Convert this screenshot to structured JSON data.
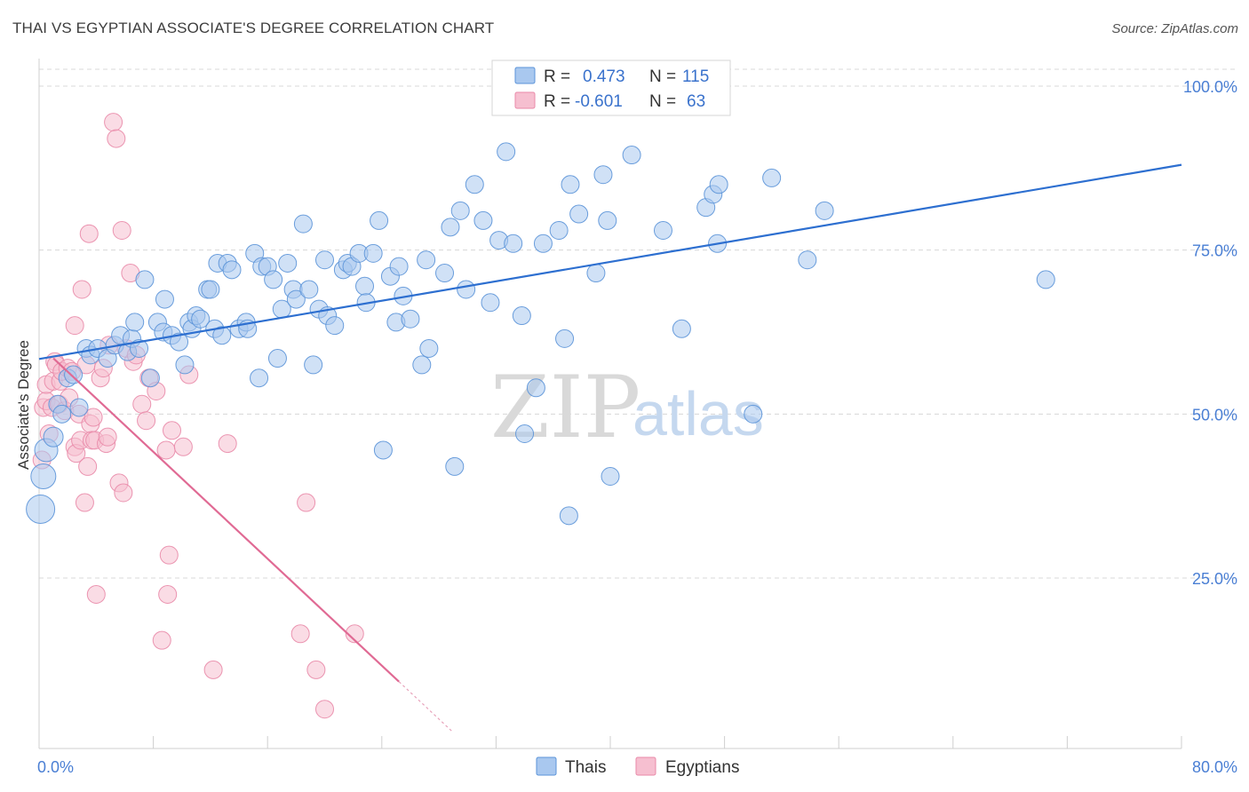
{
  "header": {
    "title": "THAI VS EGYPTIAN ASSOCIATE'S DEGREE CORRELATION CHART",
    "source": "Source: ZipAtlas.com"
  },
  "watermark": {
    "zip": "ZIP",
    "atlas": "atlas"
  },
  "colors": {
    "thai_fill": "#a9c8ef",
    "thai_stroke": "#5b93d8",
    "thai_line": "#2d6fd0",
    "egypt_fill": "#f6bfd0",
    "egypt_stroke": "#e98aa9",
    "egypt_line": "#e06a94",
    "tick": "#4a7fd4",
    "grid": "#d8d8d8"
  },
  "legend": {
    "rows": [
      {
        "r_label": "R =",
        "r_value": "0.473",
        "n_label": "N =",
        "n_value": "115"
      },
      {
        "r_label": "R =",
        "r_value": "-0.601",
        "n_label": "N =",
        "n_value": "63"
      }
    ],
    "bottom": [
      "Thais",
      "Egyptians"
    ]
  },
  "chart_data": {
    "type": "scatter",
    "title": "THAI VS EGYPTIAN ASSOCIATE'S DEGREE CORRELATION CHART",
    "xlabel": "",
    "ylabel": "Associate's Degree",
    "xlim": [
      0,
      80
    ],
    "ylim": [
      0,
      105
    ],
    "x_tick_labels": [
      "0.0%",
      "80.0%"
    ],
    "y_ticks": [
      25,
      50,
      75,
      100
    ],
    "y_tick_labels": [
      "25.0%",
      "50.0%",
      "75.0%",
      "100.0%"
    ],
    "grid": true,
    "legend_position": "top-center",
    "series": [
      {
        "name": "Thais",
        "r": 0.473,
        "n": 115,
        "trend": {
          "x": [
            0,
            80
          ],
          "y": [
            58.4,
            88.0
          ]
        },
        "points": [
          [
            0.1,
            35.5,
            16
          ],
          [
            0.3,
            40.5,
            14
          ],
          [
            0.5,
            44.5,
            13
          ],
          [
            1.0,
            46.5,
            11
          ],
          [
            1.3,
            51.5,
            10
          ],
          [
            1.6,
            50.0,
            10
          ],
          [
            2.0,
            55.5,
            10
          ],
          [
            2.4,
            56.0,
            10
          ],
          [
            2.8,
            51.0,
            10
          ],
          [
            3.3,
            60.0,
            10
          ],
          [
            3.6,
            59.0,
            10
          ],
          [
            4.1,
            60.0,
            10
          ],
          [
            4.8,
            58.5,
            10
          ],
          [
            5.3,
            60.5,
            10
          ],
          [
            5.7,
            62.0,
            10
          ],
          [
            6.2,
            59.5,
            10
          ],
          [
            6.5,
            61.5,
            10
          ],
          [
            6.7,
            64.0,
            10
          ],
          [
            7.0,
            60.0,
            10
          ],
          [
            7.4,
            70.5,
            10
          ],
          [
            7.8,
            55.5,
            10
          ],
          [
            8.3,
            64.0,
            10
          ],
          [
            8.7,
            62.5,
            10
          ],
          [
            8.8,
            67.5,
            10
          ],
          [
            9.3,
            62.0,
            10
          ],
          [
            9.8,
            61.0,
            10
          ],
          [
            10.2,
            57.5,
            10
          ],
          [
            10.5,
            64.0,
            10
          ],
          [
            10.7,
            63.0,
            10
          ],
          [
            11.0,
            65.0,
            10
          ],
          [
            11.3,
            64.5,
            10
          ],
          [
            11.8,
            69.0,
            10
          ],
          [
            12.0,
            69.0,
            10
          ],
          [
            12.3,
            63.0,
            10
          ],
          [
            12.5,
            73.0,
            10
          ],
          [
            12.8,
            62.0,
            10
          ],
          [
            13.2,
            73.0,
            10
          ],
          [
            13.5,
            72.0,
            10
          ],
          [
            14.0,
            63.0,
            10
          ],
          [
            14.5,
            64.0,
            10
          ],
          [
            14.6,
            63.0,
            10
          ],
          [
            15.1,
            74.5,
            10
          ],
          [
            15.4,
            55.5,
            10
          ],
          [
            15.6,
            72.5,
            10
          ],
          [
            16.0,
            72.5,
            10
          ],
          [
            16.4,
            70.5,
            10
          ],
          [
            16.7,
            58.5,
            10
          ],
          [
            17.0,
            66.0,
            10
          ],
          [
            17.4,
            73.0,
            10
          ],
          [
            17.8,
            69.0,
            10
          ],
          [
            18.0,
            67.5,
            10
          ],
          [
            18.5,
            79.0,
            10
          ],
          [
            18.9,
            69.0,
            10
          ],
          [
            19.2,
            57.5,
            10
          ],
          [
            19.6,
            66.0,
            10
          ],
          [
            20.0,
            73.5,
            10
          ],
          [
            20.2,
            65.0,
            10
          ],
          [
            20.7,
            63.5,
            10
          ],
          [
            21.3,
            72.0,
            10
          ],
          [
            21.6,
            73.0,
            10
          ],
          [
            21.9,
            72.5,
            10
          ],
          [
            22.4,
            74.5,
            10
          ],
          [
            22.8,
            69.5,
            10
          ],
          [
            22.9,
            67.0,
            10
          ],
          [
            23.4,
            74.5,
            10
          ],
          [
            23.8,
            79.5,
            10
          ],
          [
            24.1,
            44.5,
            10
          ],
          [
            24.6,
            71.0,
            10
          ],
          [
            25.0,
            64.0,
            10
          ],
          [
            25.2,
            72.5,
            10
          ],
          [
            25.5,
            68.0,
            10
          ],
          [
            26.0,
            64.5,
            10
          ],
          [
            26.8,
            57.5,
            10
          ],
          [
            27.1,
            73.5,
            10
          ],
          [
            27.3,
            60.0,
            10
          ],
          [
            28.4,
            71.5,
            10
          ],
          [
            28.8,
            78.5,
            10
          ],
          [
            29.1,
            42.0,
            10
          ],
          [
            29.5,
            81.0,
            10
          ],
          [
            29.9,
            69.0,
            10
          ],
          [
            30.5,
            85.0,
            10
          ],
          [
            31.1,
            79.5,
            10
          ],
          [
            31.6,
            67.0,
            10
          ],
          [
            32.2,
            76.5,
            10
          ],
          [
            32.7,
            90.0,
            10
          ],
          [
            33.2,
            76.0,
            10
          ],
          [
            33.8,
            65.0,
            10
          ],
          [
            34.0,
            47.0,
            10
          ],
          [
            34.8,
            54.0,
            10
          ],
          [
            35.3,
            76.0,
            10
          ],
          [
            36.4,
            78.0,
            10
          ],
          [
            36.8,
            61.5,
            10
          ],
          [
            37.1,
            34.5,
            10
          ],
          [
            37.2,
            85.0,
            10
          ],
          [
            37.8,
            80.5,
            10
          ],
          [
            39.0,
            71.5,
            10
          ],
          [
            39.5,
            86.5,
            10
          ],
          [
            39.8,
            79.5,
            10
          ],
          [
            40.0,
            40.5,
            10
          ],
          [
            41.5,
            89.5,
            10
          ],
          [
            43.7,
            78.0,
            10
          ],
          [
            45.0,
            63.0,
            10
          ],
          [
            46.7,
            81.5,
            10
          ],
          [
            47.2,
            83.5,
            10
          ],
          [
            47.5,
            76.0,
            10
          ],
          [
            47.6,
            85.0,
            10
          ],
          [
            50.0,
            50.0,
            10
          ],
          [
            51.3,
            86.0,
            10
          ],
          [
            53.8,
            73.5,
            10
          ],
          [
            55.0,
            81.0,
            10
          ],
          [
            70.5,
            70.5,
            10
          ]
        ]
      },
      {
        "name": "Egyptians",
        "r": -0.601,
        "n": 63,
        "trend": {
          "x": [
            1.0,
            25.2
          ],
          "y": [
            58.5,
            9.2
          ],
          "dash_x": [
            25.2,
            29.0
          ]
        },
        "points": [
          [
            0.2,
            43.0,
            10
          ],
          [
            0.3,
            51.0,
            10
          ],
          [
            0.5,
            52.0,
            10
          ],
          [
            0.5,
            54.5,
            10
          ],
          [
            0.7,
            47.0,
            10
          ],
          [
            0.9,
            51.0,
            10
          ],
          [
            1.0,
            55.0,
            10
          ],
          [
            1.1,
            58.0,
            10
          ],
          [
            1.2,
            57.5,
            10
          ],
          [
            1.4,
            51.5,
            10
          ],
          [
            1.5,
            55.0,
            10
          ],
          [
            1.6,
            56.5,
            10
          ],
          [
            1.8,
            50.5,
            10
          ],
          [
            2.0,
            57.0,
            10
          ],
          [
            2.1,
            52.5,
            10
          ],
          [
            2.3,
            56.5,
            10
          ],
          [
            2.5,
            45.0,
            10
          ],
          [
            2.5,
            63.5,
            10
          ],
          [
            2.6,
            44.0,
            10
          ],
          [
            2.8,
            50.0,
            10
          ],
          [
            2.9,
            46.0,
            10
          ],
          [
            3.0,
            69.0,
            10
          ],
          [
            3.2,
            36.5,
            10
          ],
          [
            3.3,
            57.5,
            10
          ],
          [
            3.4,
            42.0,
            10
          ],
          [
            3.5,
            77.5,
            10
          ],
          [
            3.6,
            48.5,
            10
          ],
          [
            3.7,
            46.0,
            10
          ],
          [
            3.8,
            49.5,
            10
          ],
          [
            3.9,
            46.0,
            10
          ],
          [
            4.0,
            22.5,
            10
          ],
          [
            4.3,
            55.5,
            10
          ],
          [
            4.5,
            57.0,
            10
          ],
          [
            4.7,
            45.5,
            10
          ],
          [
            4.8,
            46.5,
            10
          ],
          [
            4.9,
            60.5,
            10
          ],
          [
            5.2,
            94.5,
            10
          ],
          [
            5.4,
            92.0,
            10
          ],
          [
            5.6,
            39.5,
            10
          ],
          [
            5.8,
            78.0,
            10
          ],
          [
            5.9,
            38.0,
            10
          ],
          [
            6.1,
            60.0,
            10
          ],
          [
            6.4,
            71.5,
            10
          ],
          [
            6.6,
            58.0,
            10
          ],
          [
            6.8,
            59.0,
            10
          ],
          [
            7.2,
            51.5,
            10
          ],
          [
            7.5,
            49.0,
            10
          ],
          [
            7.7,
            55.5,
            10
          ],
          [
            8.2,
            53.5,
            10
          ],
          [
            8.6,
            15.5,
            10
          ],
          [
            8.9,
            44.5,
            10
          ],
          [
            9.0,
            22.5,
            10
          ],
          [
            9.1,
            28.5,
            10
          ],
          [
            9.3,
            47.5,
            10
          ],
          [
            10.1,
            45.0,
            10
          ],
          [
            10.5,
            56.0,
            10
          ],
          [
            12.2,
            11.0,
            10
          ],
          [
            18.3,
            16.5,
            10
          ],
          [
            18.7,
            36.5,
            10
          ],
          [
            19.4,
            11.0,
            10
          ],
          [
            20.0,
            5.0,
            10
          ],
          [
            22.1,
            16.5,
            10
          ],
          [
            13.2,
            45.5,
            10
          ]
        ]
      }
    ]
  }
}
